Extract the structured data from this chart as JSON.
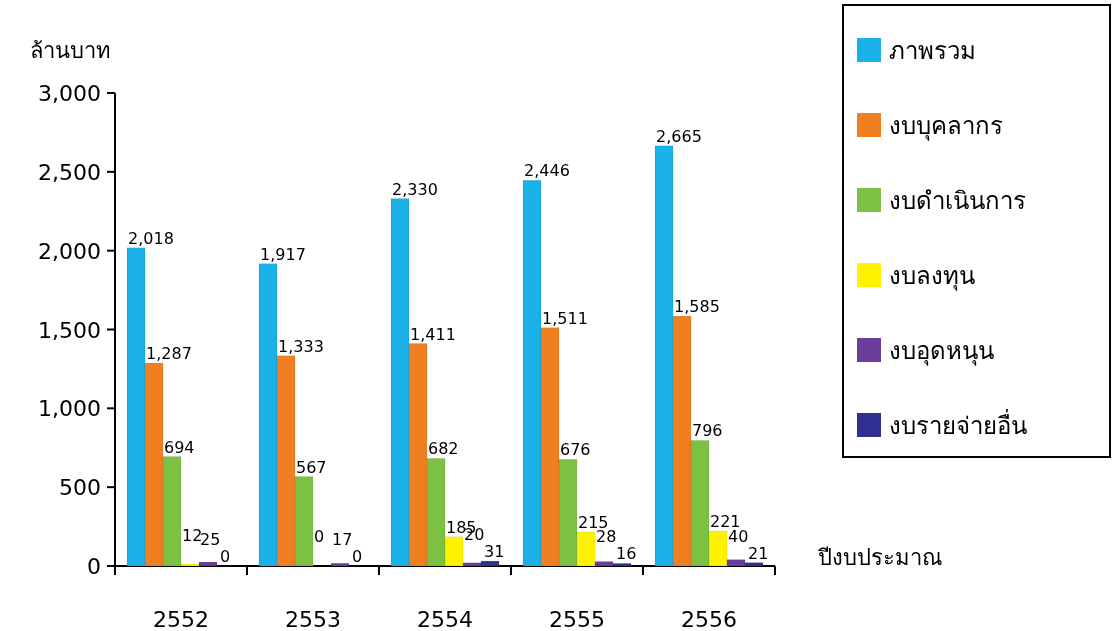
{
  "chart_data": {
    "type": "bar",
    "ylabel": "ล้านบาท",
    "xlabel": "ปีงบประมาณ",
    "categories": [
      "2552",
      "2553",
      "2554",
      "2555",
      "2556"
    ],
    "ylim": [
      0,
      3000
    ],
    "yticks": [
      {
        "value": 0,
        "label": "0"
      },
      {
        "value": 500,
        "label": "500"
      },
      {
        "value": 1000,
        "label": "1,000"
      },
      {
        "value": 1500,
        "label": "1,500"
      },
      {
        "value": 2000,
        "label": "2,000"
      },
      {
        "value": 2500,
        "label": "2,500"
      },
      {
        "value": 3000,
        "label": "3,000"
      }
    ],
    "legend": "top right",
    "grid": false,
    "series": [
      {
        "name": "ภาพรวม",
        "color": "#1ab0e8",
        "values": [
          2018,
          1917,
          2330,
          2446,
          2665
        ],
        "value_labels": [
          "2,018",
          "1,917",
          "2,330",
          "2,446",
          "2,665"
        ]
      },
      {
        "name": "งบบุคลากร",
        "color": "#f07f22",
        "values": [
          1287,
          1333,
          1411,
          1511,
          1585
        ],
        "value_labels": [
          "1,287",
          "1,333",
          "1,411",
          "1,511",
          "1,585"
        ]
      },
      {
        "name": "งบดำเนินการ",
        "color": "#7dc142",
        "values": [
          694,
          567,
          682,
          676,
          796
        ],
        "value_labels": [
          "694",
          "567",
          "682",
          "676",
          "796"
        ]
      },
      {
        "name": "งบลงทุน",
        "color": "#fff200",
        "values": [
          12,
          0,
          185,
          215,
          221
        ],
        "value_labels": [
          "12",
          "0",
          "185",
          "215",
          "221"
        ]
      },
      {
        "name": "งบอุดหนุน",
        "color": "#6a3d9a",
        "values": [
          25,
          17,
          20,
          28,
          40
        ],
        "value_labels": [
          "25",
          "17",
          "20",
          "28",
          "40"
        ]
      },
      {
        "name": "งบรายจ่ายอื่น",
        "color": "#2e3192",
        "values": [
          0,
          0,
          31,
          16,
          21
        ],
        "value_labels": [
          "0",
          "0",
          "31",
          "16",
          "21"
        ]
      }
    ]
  }
}
